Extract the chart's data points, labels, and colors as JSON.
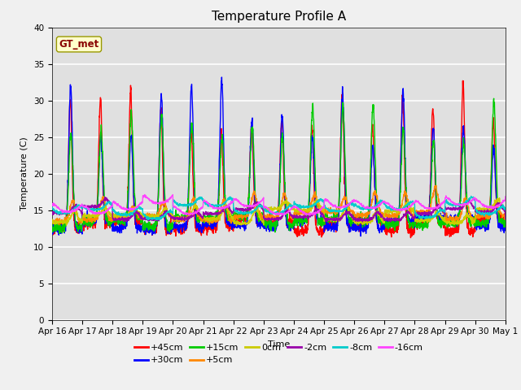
{
  "title": "Temperature Profile A",
  "xlabel": "Time",
  "ylabel": "Temperature (C)",
  "ylim": [
    0,
    40
  ],
  "n_days": 15,
  "legend_label": "GT_met",
  "series_labels": [
    "+45cm",
    "+30cm",
    "+15cm",
    "+5cm",
    "0cm",
    "-2cm",
    "-8cm",
    "-16cm"
  ],
  "series_colors": [
    "#ff0000",
    "#0000ff",
    "#00cc00",
    "#ff8800",
    "#cccc00",
    "#9900aa",
    "#00cccc",
    "#ff44ff"
  ],
  "x_tick_labels": [
    "Apr 16",
    "Apr 17",
    "Apr 18",
    "Apr 19",
    "Apr 20",
    "Apr 21",
    "Apr 22",
    "Apr 23",
    "Apr 24",
    "Apr 25",
    "Apr 26",
    "Apr 27",
    "Apr 28",
    "Apr 29",
    "Apr 30",
    "May 1"
  ],
  "background_color": "#e8e8e8",
  "plot_bg_color": "#e0e0e0",
  "grid_color": "#ffffff",
  "title_fontsize": 11,
  "axis_fontsize": 8,
  "tick_fontsize": 7.5,
  "legend_box_color": "#ffffcc",
  "legend_text_color": "#880000",
  "fig_bg_color": "#f0f0f0"
}
